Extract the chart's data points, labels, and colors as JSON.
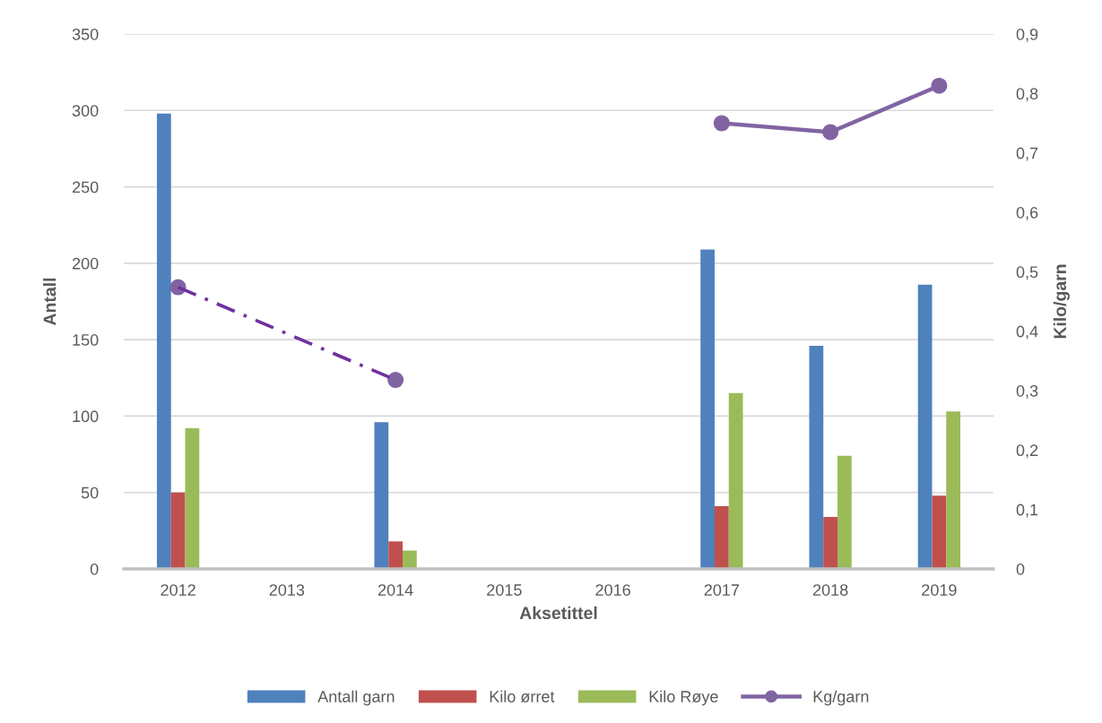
{
  "chart_data": {
    "type": "bar",
    "xlabel": "Aksetittel",
    "ylabel": "Antall",
    "y2label": "Kilo/garn",
    "categories": [
      "2012",
      "2013",
      "2014",
      "2015",
      "2016",
      "2017",
      "2018",
      "2019"
    ],
    "series": [
      {
        "name": "Antall garn",
        "color": "#4f81bd",
        "values": [
          298,
          null,
          96,
          null,
          null,
          209,
          146,
          186
        ]
      },
      {
        "name": "Kilo ørret",
        "color": "#c0504d",
        "values": [
          50,
          null,
          18,
          null,
          null,
          41,
          34,
          48
        ]
      },
      {
        "name": "Kilo Røye",
        "color": "#9bbb59",
        "values": [
          92,
          null,
          12,
          null,
          null,
          115,
          74,
          103
        ]
      },
      {
        "name": "Kg/garn",
        "type": "line",
        "axis": "y2",
        "color": "#8064a2",
        "marker": "circle",
        "line_style": "solid",
        "values": [
          0.474,
          null,
          0.318,
          null,
          null,
          0.75,
          0.735,
          0.813
        ]
      },
      {
        "type": "line",
        "axis": "y2",
        "color": "#7030a0",
        "marker": "none",
        "line_style": "dashed",
        "values": [
          0.474,
          null,
          0.318,
          null,
          null,
          null,
          null,
          null
        ]
      }
    ],
    "ylim": [
      0,
      350
    ],
    "yticks": [
      0,
      50,
      100,
      150,
      200,
      250,
      300,
      350
    ],
    "y2lim": [
      0,
      0.9
    ],
    "y2ticks": [
      0,
      {
        "value": 0.1,
        "label": "0,1"
      },
      {
        "value": 0.2,
        "label": "0,2"
      },
      {
        "value": 0.3,
        "label": "0,3"
      },
      {
        "value": 0.4,
        "label": "0,4"
      },
      {
        "value": 0.5,
        "label": "0,5"
      },
      {
        "value": 0.6,
        "label": "0,6"
      },
      {
        "value": 0.7,
        "label": "0,7"
      },
      {
        "value": 0.8,
        "label": "0,8"
      },
      {
        "value": 0.9,
        "label": "0,9"
      }
    ],
    "grid": "y",
    "legend": "bottom"
  }
}
